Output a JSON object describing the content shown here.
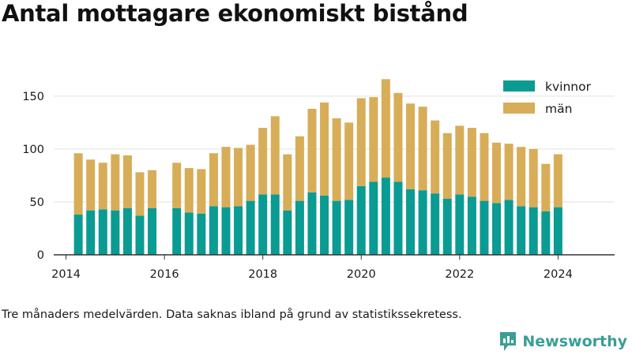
{
  "header": {
    "title": "Antal mottagare ekonomiskt bistånd"
  },
  "footer": {
    "caption": "Tre månaders medelvärden. Data saknas ibland på grund av statistikssekretess.",
    "brand": "Newsworthy"
  },
  "colors": {
    "kvinnor": "#0a9b93",
    "man": "#d7ad58",
    "grid": "#e2e2e2",
    "axis": "#333333",
    "brand": "#3a9e96"
  },
  "icons": {
    "brand": "newsworthy-logo-icon"
  },
  "chart_data": {
    "type": "bar",
    "stacked": true,
    "title": "Antal mottagare ekonomiskt bistånd",
    "xlabel": "",
    "ylabel": "",
    "ylim": [
      0,
      170
    ],
    "yticks": [
      0,
      50,
      100,
      150
    ],
    "xlim": [
      2013.75,
      2025.15
    ],
    "xticks": [
      2014,
      2016,
      2018,
      2020,
      2022,
      2024
    ],
    "grid": true,
    "legend_position": "top-right",
    "x": [
      2014.25,
      2014.5,
      2014.75,
      2015.0,
      2015.25,
      2015.5,
      2015.75,
      2016.25,
      2016.5,
      2016.75,
      2017.0,
      2017.25,
      2017.5,
      2017.75,
      2018.0,
      2018.25,
      2018.5,
      2018.75,
      2019.0,
      2019.25,
      2019.5,
      2019.75,
      2020.0,
      2020.25,
      2020.5,
      2020.75,
      2021.0,
      2021.25,
      2021.5,
      2021.75,
      2022.0,
      2022.25,
      2022.5,
      2022.75,
      2023.0,
      2023.25,
      2023.5,
      2023.75,
      2024.0
    ],
    "series": [
      {
        "name": "kvinnor",
        "values": [
          38,
          42,
          43,
          42,
          44,
          37,
          44,
          44,
          40,
          39,
          46,
          45,
          46,
          51,
          57,
          57,
          42,
          51,
          59,
          56,
          51,
          52,
          65,
          69,
          73,
          69,
          62,
          61,
          58,
          53,
          57,
          55,
          51,
          49,
          52,
          46,
          45,
          41,
          45
        ]
      },
      {
        "name": "män",
        "values": [
          58,
          48,
          44,
          53,
          50,
          41,
          36,
          43,
          42,
          42,
          50,
          57,
          55,
          53,
          63,
          74,
          53,
          61,
          79,
          88,
          78,
          73,
          83,
          80,
          93,
          84,
          81,
          79,
          69,
          62,
          65,
          65,
          64,
          57,
          53,
          56,
          55,
          45,
          50
        ]
      }
    ]
  }
}
